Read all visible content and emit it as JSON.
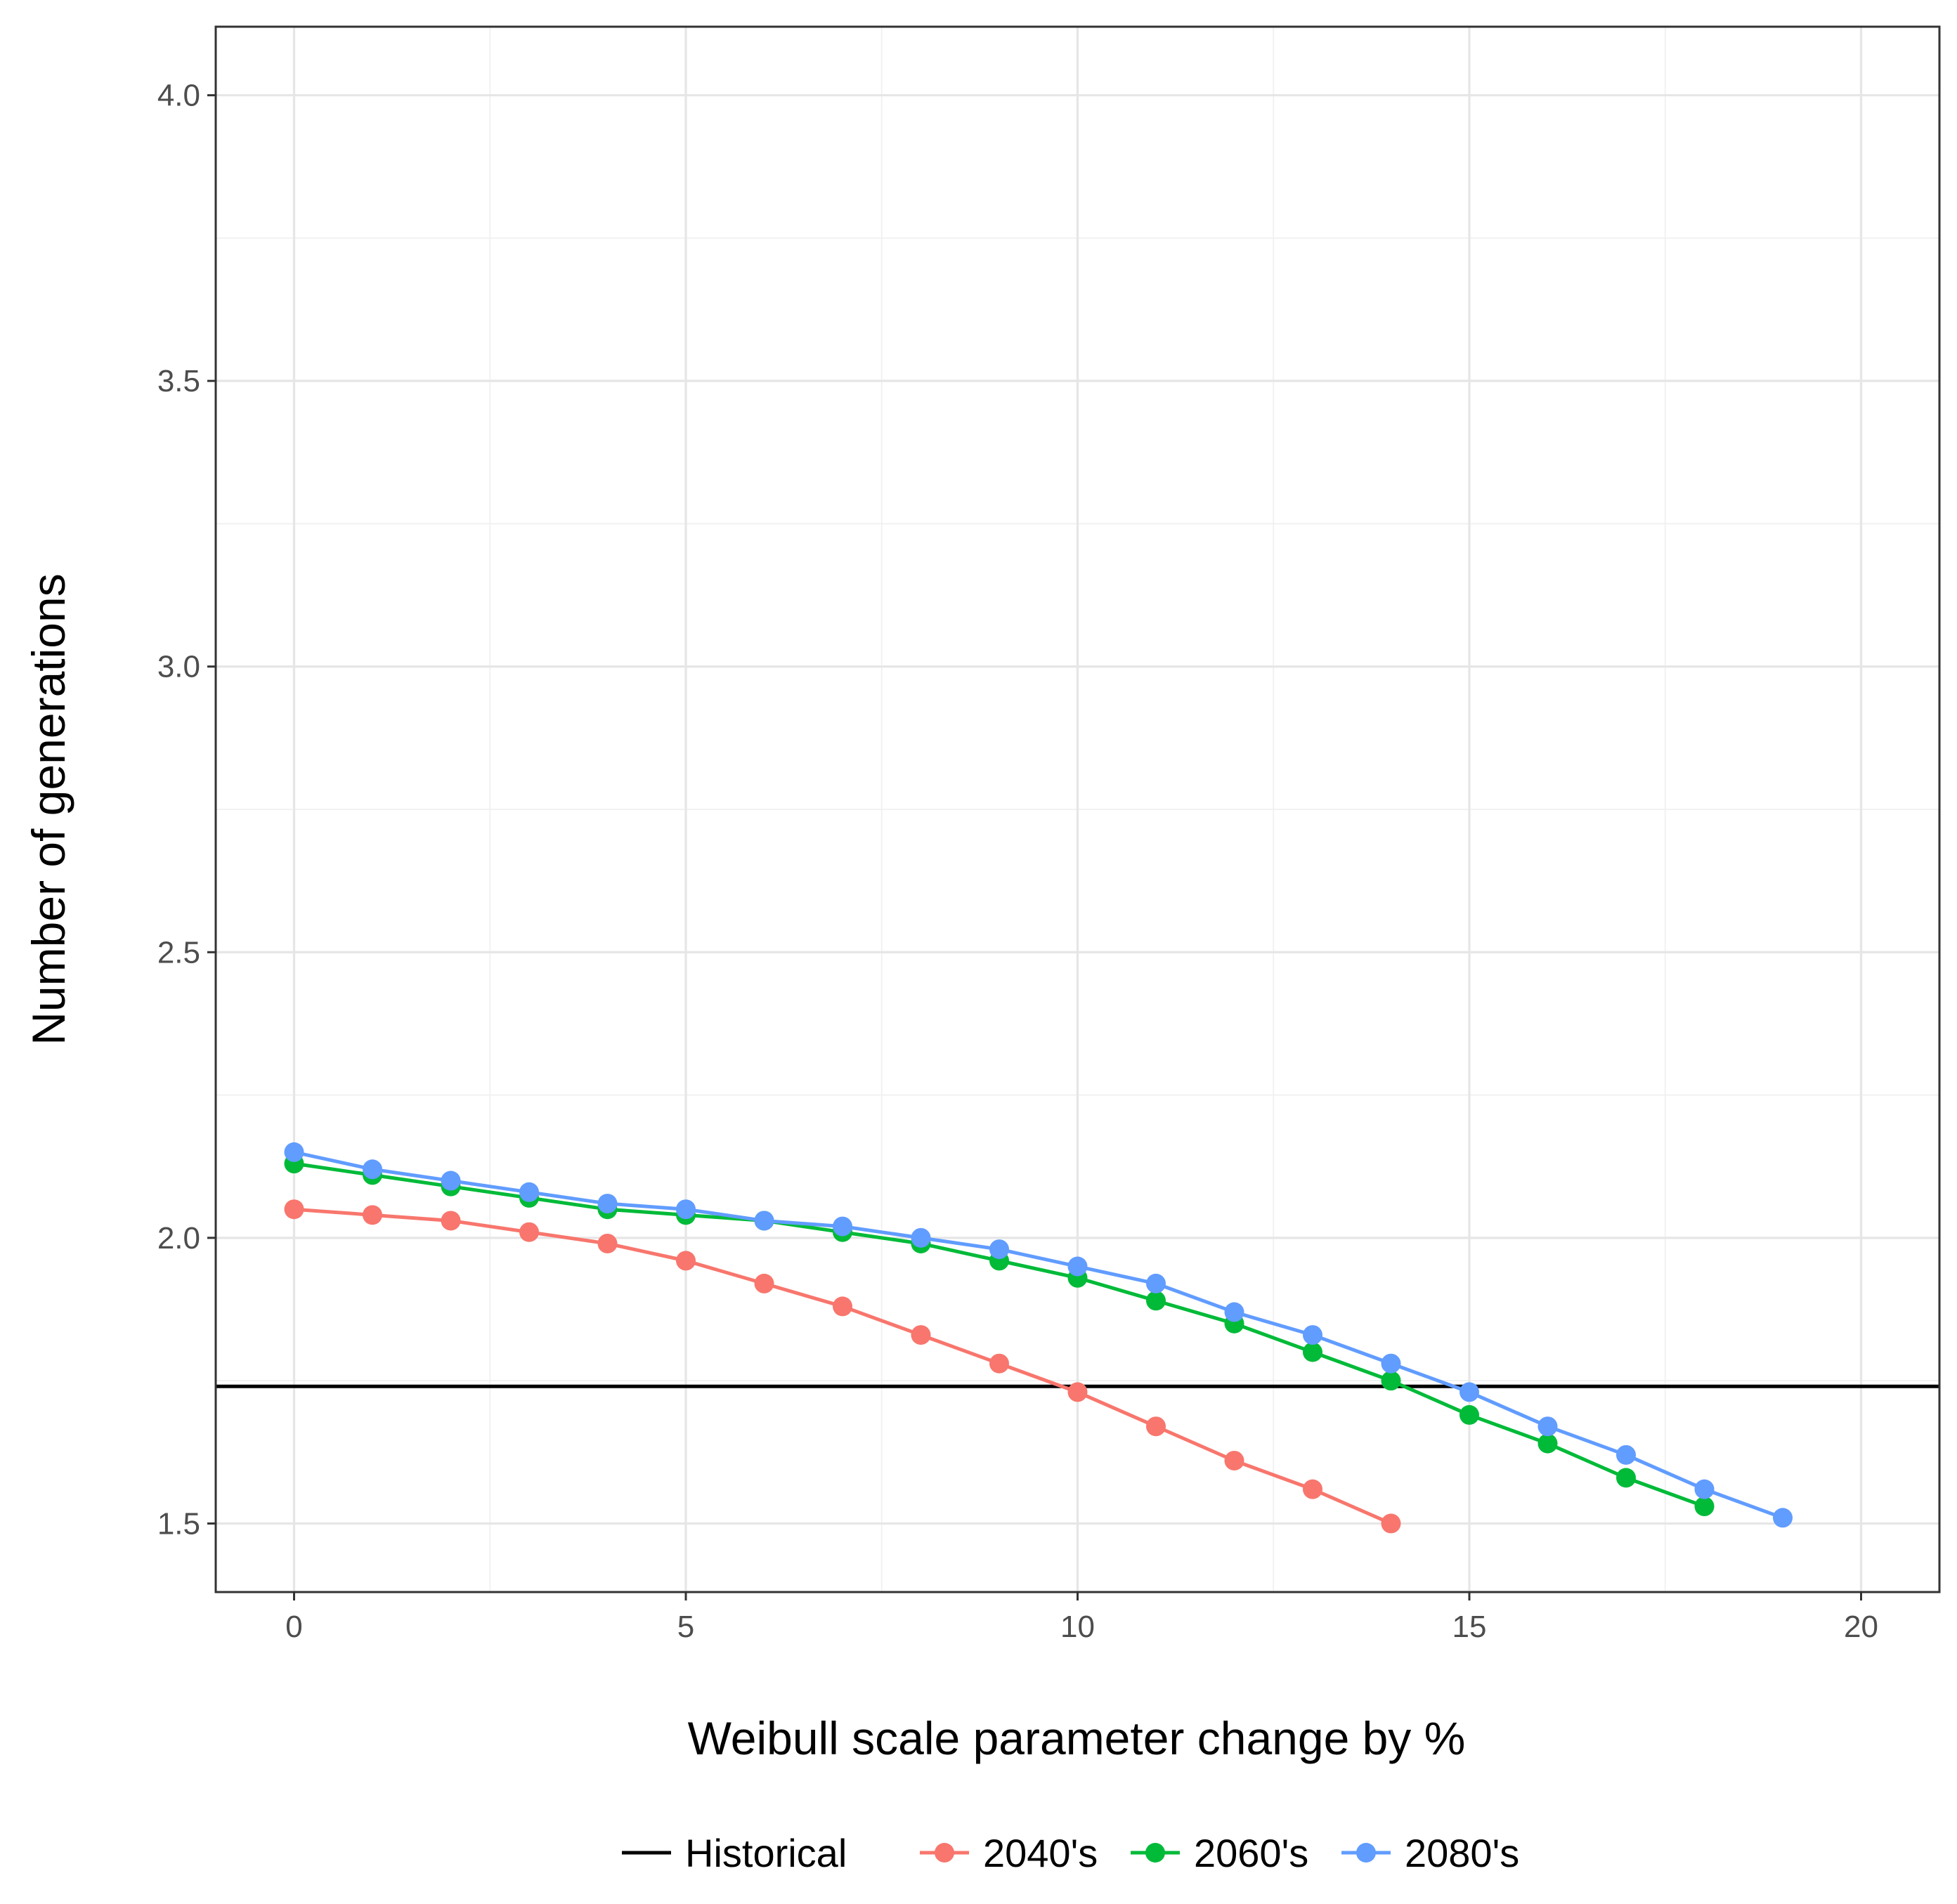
{
  "chart_data": {
    "type": "line",
    "title": "",
    "xlabel": "Weibull scale parameter change by %",
    "ylabel": "Number of generations",
    "xlim": [
      -1,
      21
    ],
    "ylim": [
      1.38,
      4.12
    ],
    "x_ticks": [
      0,
      5,
      10,
      15,
      20
    ],
    "y_ticks": [
      1.5,
      2.0,
      2.5,
      3.0,
      3.5,
      4.0
    ],
    "x_tick_labels": [
      "0",
      "5",
      "10",
      "15",
      "20"
    ],
    "y_tick_labels": [
      "1.5",
      "2.0",
      "2.5",
      "3.0",
      "3.5",
      "4.0"
    ],
    "grid": true,
    "legend_position": "bottom",
    "reference_line": {
      "name": "Historical",
      "y": 1.74,
      "color": "#000000"
    },
    "series": [
      {
        "name": "2040's",
        "color": "#F8766D",
        "x": [
          0,
          1,
          2,
          3,
          4,
          5,
          6,
          7,
          8,
          9,
          10,
          11,
          12,
          13,
          14
        ],
        "values": [
          2.05,
          2.04,
          2.03,
          2.01,
          1.99,
          1.96,
          1.92,
          1.88,
          1.83,
          1.78,
          1.73,
          1.67,
          1.61,
          1.56,
          1.5
        ]
      },
      {
        "name": "2060's",
        "color": "#00BA38",
        "x": [
          0,
          1,
          2,
          3,
          4,
          5,
          6,
          7,
          8,
          9,
          10,
          11,
          12,
          13,
          14,
          15,
          16,
          17,
          18
        ],
        "values": [
          2.13,
          2.11,
          2.09,
          2.07,
          2.05,
          2.04,
          2.03,
          2.01,
          1.99,
          1.96,
          1.93,
          1.89,
          1.85,
          1.8,
          1.75,
          1.69,
          1.64,
          1.58,
          1.53
        ]
      },
      {
        "name": "2080's",
        "color": "#619CFF",
        "x": [
          0,
          1,
          2,
          3,
          4,
          5,
          6,
          7,
          8,
          9,
          10,
          11,
          12,
          13,
          14,
          15,
          16,
          17,
          18,
          19
        ],
        "values": [
          2.15,
          2.12,
          2.1,
          2.08,
          2.06,
          2.05,
          2.03,
          2.02,
          2.0,
          1.98,
          1.95,
          1.92,
          1.87,
          1.83,
          1.78,
          1.73,
          1.67,
          1.62,
          1.56,
          1.51
        ]
      }
    ]
  }
}
